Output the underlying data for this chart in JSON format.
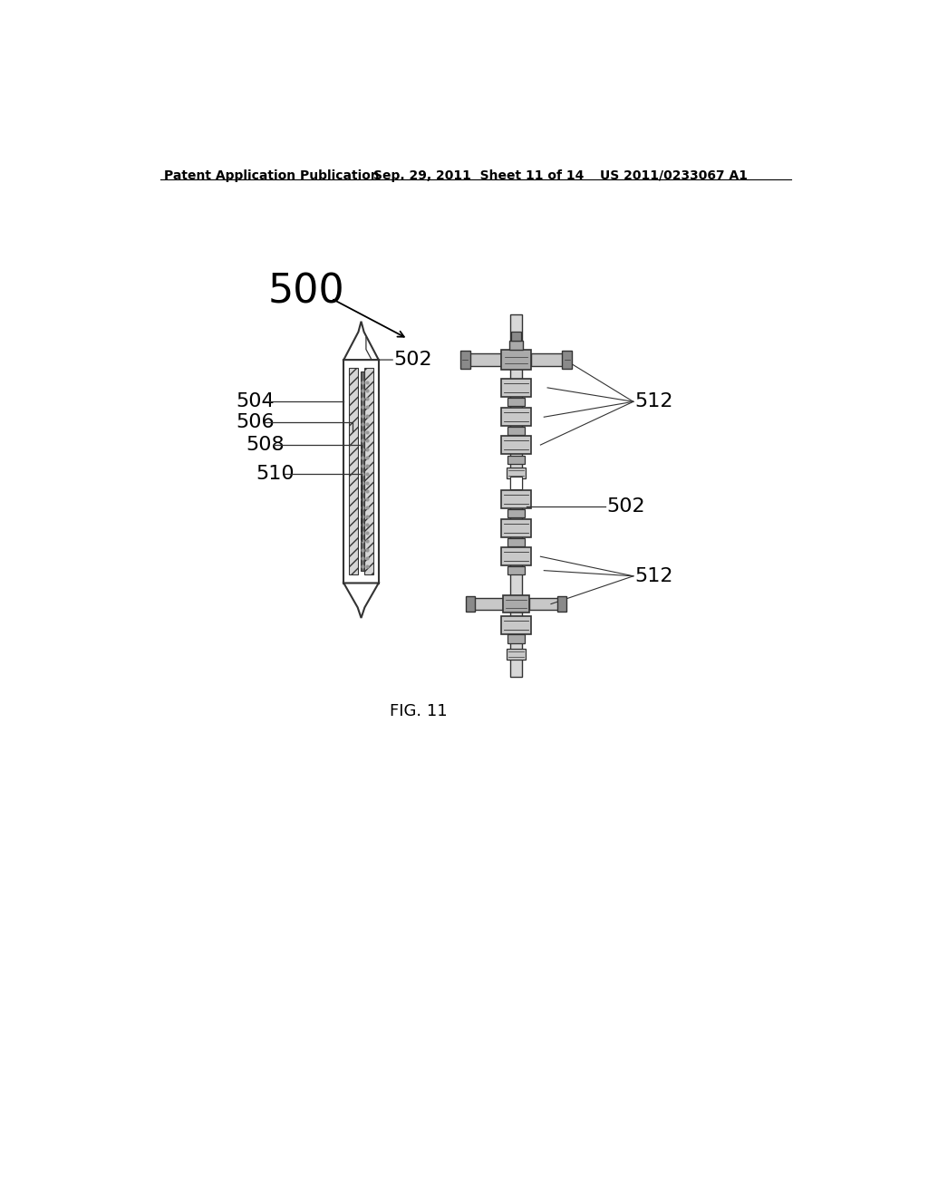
{
  "background_color": "#ffffff",
  "header_left": "Patent Application Publication",
  "header_center": "Sep. 29, 2011  Sheet 11 of 14",
  "header_right": "US 2011/0233067 A1",
  "caption": "FIG. 11",
  "label_500": "500",
  "label_502_left": "502",
  "label_502_right": "502",
  "label_504": "504",
  "label_506": "506",
  "label_508": "508",
  "label_510": "510",
  "label_512_top": "512",
  "label_512_bottom": "512",
  "header_fontsize": 10,
  "label_fontsize_large": 32,
  "label_fontsize_medium": 16,
  "caption_fontsize": 13,
  "line_color": "#333333",
  "fitting_color_dark": "#8a8a8a",
  "fitting_color_mid": "#aaaaaa",
  "fitting_color_light": "#c8c8c8",
  "tube_color": "#d8d8d8"
}
